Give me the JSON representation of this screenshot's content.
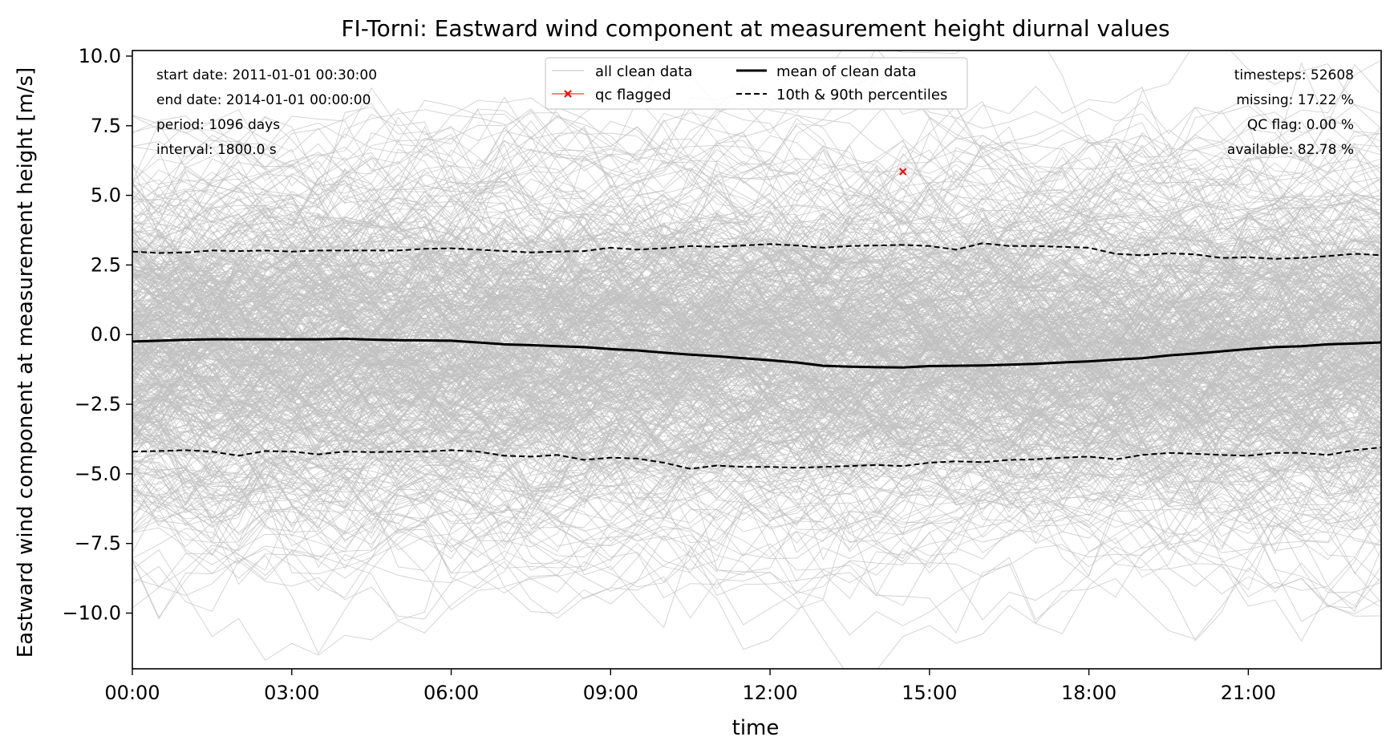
{
  "chart_data": {
    "type": "line",
    "title": "FI-Torni: Eastward wind component at measurement height diurnal values",
    "xlabel": "time",
    "ylabel": "Eastward wind component at measurement height [m/s]",
    "xlim_hours": [
      0,
      23.5
    ],
    "ylim": [
      -12.0,
      10.2
    ],
    "x_ticks": [
      {
        "hour": 0,
        "label": "00:00"
      },
      {
        "hour": 3,
        "label": "03:00"
      },
      {
        "hour": 6,
        "label": "06:00"
      },
      {
        "hour": 9,
        "label": "09:00"
      },
      {
        "hour": 12,
        "label": "12:00"
      },
      {
        "hour": 15,
        "label": "15:00"
      },
      {
        "hour": 18,
        "label": "18:00"
      },
      {
        "hour": 21,
        "label": "21:00"
      }
    ],
    "y_ticks": [
      {
        "value": 10.0,
        "label": "10.0"
      },
      {
        "value": 7.5,
        "label": "7.5"
      },
      {
        "value": 5.0,
        "label": "5.0"
      },
      {
        "value": 2.5,
        "label": "2.5"
      },
      {
        "value": 0.0,
        "label": "0.0"
      },
      {
        "value": -2.5,
        "label": "−2.5"
      },
      {
        "value": -5.0,
        "label": "−5.0"
      },
      {
        "value": -7.5,
        "label": "−7.5"
      },
      {
        "value": -10.0,
        "label": "−10.0"
      }
    ],
    "x_hours": [
      0,
      0.5,
      1,
      1.5,
      2,
      2.5,
      3,
      3.5,
      4,
      4.5,
      5,
      5.5,
      6,
      6.5,
      7,
      7.5,
      8,
      8.5,
      9,
      9.5,
      10,
      10.5,
      11,
      11.5,
      12,
      12.5,
      13,
      13.5,
      14,
      14.5,
      15,
      15.5,
      16,
      16.5,
      17,
      17.5,
      18,
      18.5,
      19,
      19.5,
      20,
      20.5,
      21,
      21.5,
      22,
      22.5,
      23,
      23.5
    ],
    "series": [
      {
        "name": "mean of clean data",
        "color": "#000000",
        "style": "solid",
        "values": [
          -0.25,
          -0.22,
          -0.19,
          -0.17,
          -0.17,
          -0.17,
          -0.17,
          -0.17,
          -0.15,
          -0.18,
          -0.2,
          -0.21,
          -0.22,
          -0.28,
          -0.35,
          -0.38,
          -0.42,
          -0.45,
          -0.52,
          -0.57,
          -0.65,
          -0.72,
          -0.78,
          -0.85,
          -0.92,
          -1.0,
          -1.12,
          -1.15,
          -1.17,
          -1.18,
          -1.13,
          -1.12,
          -1.11,
          -1.08,
          -1.05,
          -1.0,
          -0.96,
          -0.9,
          -0.85,
          -0.75,
          -0.68,
          -0.6,
          -0.52,
          -0.45,
          -0.42,
          -0.35,
          -0.32,
          -0.28
        ]
      },
      {
        "name": "10th & 90th percentiles",
        "color": "#000000",
        "style": "dashed",
        "values": [
          2.98,
          2.93,
          2.95,
          3.02,
          3.0,
          3.02,
          2.98,
          3.02,
          3.02,
          3.02,
          3.02,
          3.08,
          3.1,
          3.05,
          3.0,
          2.95,
          2.98,
          3.0,
          3.12,
          3.05,
          3.1,
          3.18,
          3.15,
          3.2,
          3.25,
          3.2,
          3.12,
          3.18,
          3.2,
          3.22,
          3.18,
          3.05,
          3.28,
          3.18,
          3.18,
          3.15,
          3.12,
          2.9,
          2.85,
          2.92,
          2.88,
          2.75,
          2.78,
          2.72,
          2.75,
          2.82,
          2.9,
          2.85
        ]
      },
      {
        "name": "10th percentile",
        "color": "#000000",
        "style": "dashed",
        "values": [
          -4.2,
          -4.18,
          -4.15,
          -4.2,
          -4.35,
          -4.18,
          -4.2,
          -4.3,
          -4.2,
          -4.22,
          -4.2,
          -4.2,
          -4.15,
          -4.2,
          -4.35,
          -4.38,
          -4.32,
          -4.5,
          -4.42,
          -4.45,
          -4.6,
          -4.82,
          -4.7,
          -4.75,
          -4.75,
          -4.78,
          -4.75,
          -4.72,
          -4.68,
          -4.72,
          -4.6,
          -4.55,
          -4.58,
          -4.5,
          -4.48,
          -4.42,
          -4.38,
          -4.48,
          -4.32,
          -4.25,
          -4.28,
          -4.32,
          -4.35,
          -4.25,
          -4.25,
          -4.32,
          -4.15,
          -4.05
        ]
      }
    ],
    "qc_flagged_points": [
      {
        "hour": 14.5,
        "value": 5.85
      }
    ],
    "background_lines": {
      "name": "all clean data",
      "color": "#c0c0c0",
      "spread_center": -0.6,
      "spread_sd": 2.85
    },
    "legend": {
      "placement": "top-center",
      "entries": [
        {
          "label": "all clean data",
          "color": "#c0c0c0",
          "style": "thin-line"
        },
        {
          "label": "qc flagged",
          "color": "#ff0000",
          "style": "x-marker-line"
        },
        {
          "label": "mean of clean data",
          "color": "#000000",
          "style": "solid"
        },
        {
          "label": "10th & 90th percentiles",
          "color": "#000000",
          "style": "dashed"
        }
      ]
    },
    "info_left": [
      "start date: 2011-01-01 00:30:00",
      "end date: 2014-01-01 00:00:00",
      "period: 1096 days",
      "interval: 1800.0 s"
    ],
    "info_right": [
      "timesteps: 52608",
      "missing: 17.22 %",
      "QC flag: 0.00 %",
      "available: 82.78 %"
    ],
    "grid": false
  }
}
